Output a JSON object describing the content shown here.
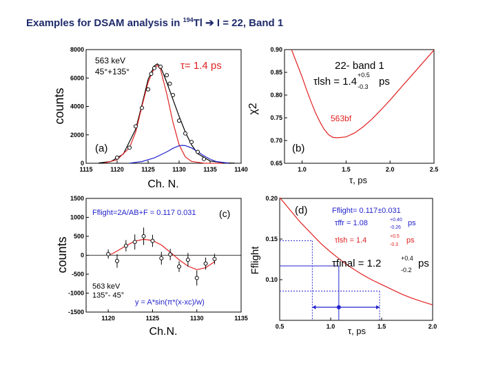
{
  "slide": {
    "title_prefix": "Examples for DSAM analysis in ",
    "title_mass": "194",
    "title_element": "Tl",
    "title_arrow": "➔",
    "title_suffix": "I = 22, Band 1"
  },
  "colors": {
    "red": "#e02020",
    "blue": "#2222cc",
    "black": "#000000",
    "title": "#1f2a6b"
  },
  "chart_data": [
    {
      "id": "a",
      "type": "line",
      "xlabel": "Ch. N.",
      "ylabel": "counts",
      "xlim": [
        1115,
        1140
      ],
      "ylim": [
        0,
        8000
      ],
      "xticks": [
        1115,
        1120,
        1125,
        1130,
        1135,
        1140
      ],
      "yticks": [
        0,
        2000,
        4000,
        6000,
        8000
      ],
      "grid": false,
      "annotations": {
        "energy": "563 keV",
        "angle": "45°+135°",
        "tau": "τ= 1.4 ps",
        "panel": "(a)"
      },
      "series": [
        {
          "role": "total fit",
          "color": "black",
          "x": [
            1117,
            1119,
            1121,
            1123,
            1124,
            1125,
            1126,
            1126.5,
            1127,
            1128,
            1129,
            1130,
            1131,
            1132,
            1133,
            1135,
            1137,
            1139
          ],
          "y": [
            20,
            120,
            650,
            2400,
            4100,
            5900,
            6850,
            7000,
            6800,
            5700,
            4500,
            3300,
            2200,
            1300,
            680,
            160,
            40,
            10
          ]
        },
        {
          "role": "stopped component",
          "color": "red",
          "x": [
            1118,
            1120,
            1122,
            1123,
            1124,
            1125,
            1126,
            1126.5,
            1127,
            1128,
            1129,
            1130,
            1131,
            1132,
            1134,
            1137
          ],
          "y": [
            20,
            250,
            1100,
            2200,
            4000,
            5700,
            6700,
            6900,
            6600,
            4900,
            2900,
            1300,
            450,
            130,
            10,
            0
          ]
        },
        {
          "role": "flight component",
          "color": "blue",
          "x": [
            1122,
            1124,
            1126,
            1128,
            1129,
            1130,
            1130.5,
            1131,
            1132,
            1133,
            1134,
            1135,
            1136,
            1138
          ],
          "y": [
            10,
            120,
            380,
            800,
            1050,
            1230,
            1260,
            1240,
            1080,
            820,
            530,
            290,
            120,
            10
          ]
        },
        {
          "role": "data",
          "color": "black",
          "marker": "circle",
          "x": [
            1120,
            1122,
            1123,
            1124,
            1125,
            1125.5,
            1126,
            1127,
            1128,
            1128.5,
            1129,
            1130,
            1131,
            1132,
            1133,
            1134
          ],
          "y": [
            400,
            1100,
            2600,
            3900,
            5200,
            6300,
            6700,
            6800,
            6200,
            5600,
            4800,
            3000,
            2100,
            1500,
            800,
            300
          ]
        }
      ]
    },
    {
      "id": "b",
      "type": "line",
      "xlabel": "τ, ps",
      "ylabel": "χ2",
      "xlim": [
        0.8,
        2.5
      ],
      "ylim": [
        0.65,
        0.9
      ],
      "xticks": [
        1.0,
        1.5,
        2.0,
        2.5
      ],
      "yticks": [
        0.65,
        0.7,
        0.75,
        0.8,
        0.85,
        0.9
      ],
      "grid": false,
      "annotations": {
        "header": "22- band 1",
        "tau_main": "τlsh = 1.4",
        "tau_sub": "lsh",
        "err_plus": "+0.5",
        "err_minus": "-0.3",
        "unit": "ps",
        "curve_label": "563bf",
        "panel": "(b)"
      },
      "series": [
        {
          "role": "chi-square",
          "color": "red",
          "x": [
            0.88,
            0.95,
            1.0,
            1.05,
            1.1,
            1.15,
            1.2,
            1.25,
            1.3,
            1.35,
            1.4,
            1.5,
            1.6,
            1.7,
            1.8,
            1.9,
            2.0,
            2.1,
            2.2,
            2.3,
            2.4,
            2.5
          ],
          "y": [
            0.9,
            0.865,
            0.84,
            0.812,
            0.786,
            0.762,
            0.742,
            0.725,
            0.713,
            0.707,
            0.706,
            0.708,
            0.717,
            0.731,
            0.748,
            0.768,
            0.789,
            0.811,
            0.833,
            0.855,
            0.877,
            0.899
          ]
        }
      ]
    },
    {
      "id": "c",
      "type": "scatter",
      "xlabel": "Ch.N.",
      "ylabel": "counts",
      "xlim": [
        1117.5,
        1135
      ],
      "ylim": [
        -1500,
        1500
      ],
      "xticks": [
        1120,
        1125,
        1130,
        1135
      ],
      "yticks": [
        -1500,
        -1000,
        -500,
        0,
        500,
        1000,
        1500
      ],
      "grid": false,
      "annotations": {
        "formula": "Fflight=2A/AB+F = 0.117 0.031",
        "panel": "(c)",
        "energy": "563 keV",
        "angle": "135°- 45°",
        "fit": "y = A*sin(π*(x-xc)/w)"
      },
      "series": [
        {
          "role": "sine fit",
          "color": "red",
          "x": [
            1120,
            1120.5,
            1121,
            1122,
            1123,
            1124,
            1125,
            1126,
            1127,
            1128,
            1129,
            1130,
            1131,
            1132
          ],
          "y": [
            0,
            45,
            110,
            250,
            370,
            420,
            390,
            270,
            80,
            -120,
            -290,
            -380,
            -330,
            -170
          ]
        },
        {
          "role": "data",
          "color": "black",
          "marker": "circle",
          "x": [
            1120,
            1121,
            1122,
            1123,
            1124,
            1125,
            1126,
            1127,
            1128,
            1129,
            1130,
            1131,
            1132
          ],
          "y": [
            30,
            -150,
            250,
            350,
            500,
            380,
            -80,
            20,
            -300,
            -120,
            -600,
            -220,
            -100
          ],
          "err": [
            120,
            180,
            150,
            200,
            230,
            160,
            170,
            150,
            140,
            180,
            200,
            160,
            140
          ]
        }
      ]
    },
    {
      "id": "d",
      "type": "line",
      "xlabel": "τ, ps",
      "ylabel": "Fflight",
      "xlim": [
        0.5,
        2.0
      ],
      "ylim": [
        0.05,
        0.2
      ],
      "xticks": [
        0.5,
        1.0,
        1.5,
        2.0
      ],
      "yticks": [
        0.1,
        0.15,
        0.2
      ],
      "grid": false,
      "annotations": {
        "panel": "(d)",
        "fflight": "Fflight= 0.117±0.031",
        "tau_ffr": "τffr = 1.08",
        "tau_ffr_plus": "+0.40",
        "tau_ffr_minus": "-0.26",
        "tau_ffr_unit": "ps",
        "tau_lsh": "τlsh = 1.4",
        "tau_lsh_plus": "+0.5",
        "tau_lsh_minus": "-0.3",
        "tau_lsh_unit": "ps",
        "tau_final": "τfinal = 1.2",
        "tau_final_plus": "+0.4",
        "tau_final_minus": "-0.2",
        "tau_final_unit": "ps"
      },
      "series": [
        {
          "role": "F(tau)",
          "color": "red",
          "x": [
            0.5,
            0.6,
            0.7,
            0.8,
            0.9,
            1.0,
            1.1,
            1.2,
            1.3,
            1.4,
            1.5,
            1.6,
            1.7,
            1.8,
            1.9,
            2.0
          ],
          "y": [
            0.201,
            0.186,
            0.171,
            0.158,
            0.145,
            0.134,
            0.124,
            0.115,
            0.107,
            0.1,
            0.094,
            0.088,
            0.082,
            0.077,
            0.073,
            0.069
          ]
        }
      ],
      "guides": {
        "f_values": [
          0.148,
          0.117,
          0.086
        ],
        "tau_values": [
          0.82,
          1.08,
          1.48
        ],
        "final_point": 1.08
      }
    }
  ]
}
